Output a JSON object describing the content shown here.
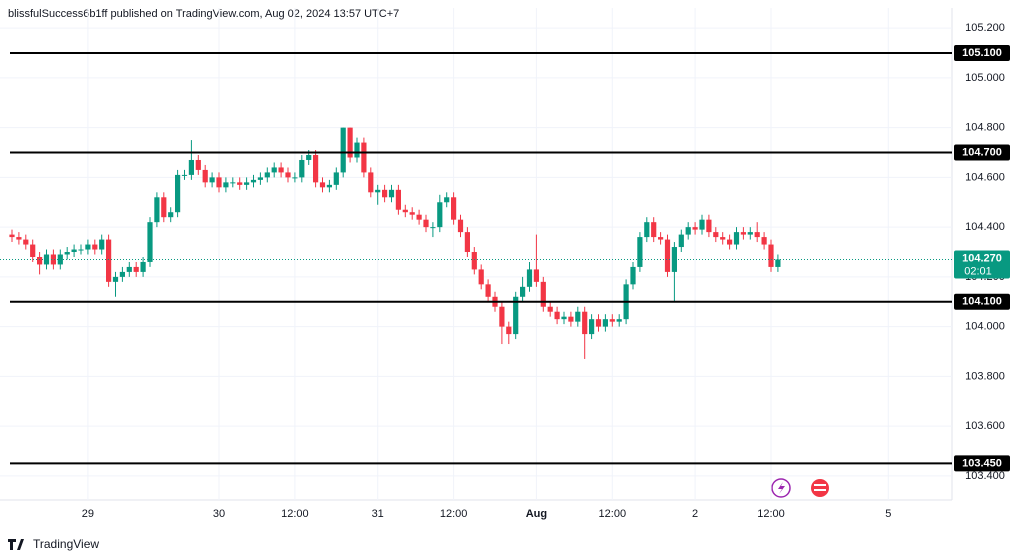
{
  "header": {
    "text": "blissfulSuccess6b1ff published on TradingView.com, Aug 02, 2024 13:57 UTC+7"
  },
  "footer": {
    "brand": "TradingView"
  },
  "chart_data": {
    "type": "candlestick",
    "up_color": "#089981",
    "down_color": "#f23645",
    "ylim": [
      103.303,
      105.281
    ],
    "yticks": [
      {
        "value": 103.4,
        "label": "103.400"
      },
      {
        "value": 103.6,
        "label": "103.600"
      },
      {
        "value": 103.8,
        "label": "103.800"
      },
      {
        "value": 104.0,
        "label": "104.000"
      },
      {
        "value": 104.2,
        "label": "104.200"
      },
      {
        "value": 104.4,
        "label": "104.400"
      },
      {
        "value": 104.6,
        "label": "104.600"
      },
      {
        "value": 104.8,
        "label": "104.800"
      },
      {
        "value": 105.0,
        "label": "105.000"
      },
      {
        "value": 105.2,
        "label": "105.200"
      }
    ],
    "grid": true,
    "levels": [
      {
        "value": 105.1,
        "label": "105.100"
      },
      {
        "value": 104.7,
        "label": "104.700"
      },
      {
        "value": 104.1,
        "label": "104.100"
      },
      {
        "value": 103.45,
        "label": "103.450"
      }
    ],
    "last_price": {
      "value": 104.27,
      "label": "104.270"
    },
    "countdown": "02:01",
    "categories": [
      null,
      null,
      null,
      null,
      null,
      null,
      null,
      null,
      null,
      null,
      null,
      "29",
      null,
      null,
      null,
      null,
      null,
      null,
      null,
      null,
      null,
      null,
      null,
      null,
      null,
      null,
      null,
      null,
      null,
      null,
      "30",
      null,
      null,
      null,
      null,
      null,
      null,
      null,
      null,
      null,
      null,
      "12:00",
      null,
      null,
      null,
      null,
      null,
      null,
      null,
      null,
      null,
      null,
      null,
      "31",
      null,
      null,
      null,
      null,
      null,
      null,
      null,
      null,
      null,
      null,
      "12:00",
      null,
      null,
      null,
      null,
      null,
      null,
      null,
      null,
      null,
      null,
      null,
      "Aug",
      null,
      null,
      null,
      null,
      null,
      null,
      null,
      null,
      null,
      null,
      "12:00",
      null,
      null,
      null,
      null,
      null,
      null,
      null,
      null,
      null,
      null,
      null,
      "2",
      null,
      null,
      null,
      null,
      null,
      null,
      null,
      null,
      null,
      null,
      "12:00",
      null,
      null,
      null,
      null,
      null,
      null,
      null,
      null,
      null,
      null,
      null,
      null,
      null,
      null,
      null,
      null,
      "5",
      null,
      null,
      null,
      null,
      null,
      null,
      null,
      null
    ],
    "open": [
      104.37,
      104.36,
      104.35,
      104.33,
      104.28,
      104.25,
      104.29,
      104.25,
      104.29,
      104.3,
      104.31,
      104.31,
      104.33,
      104.31,
      104.35,
      104.18,
      104.2,
      104.22,
      104.24,
      104.22,
      104.26,
      104.42,
      104.52,
      104.44,
      104.46,
      104.61,
      104.61,
      104.67,
      104.63,
      104.58,
      104.6,
      104.56,
      104.58,
      104.58,
      104.57,
      104.58,
      104.59,
      104.6,
      104.62,
      104.64,
      104.62,
      104.6,
      104.6,
      104.67,
      104.69,
      104.58,
      104.56,
      104.57,
      104.62,
      104.8,
      104.68,
      104.74,
      104.62,
      104.54,
      104.55,
      104.52,
      104.55,
      104.47,
      104.46,
      104.45,
      104.43,
      104.4,
      104.4,
      104.5,
      104.52,
      104.43,
      104.38,
      104.3,
      104.23,
      104.17,
      104.12,
      104.08,
      104.0,
      103.97,
      104.12,
      104.16,
      104.23,
      104.18,
      104.08,
      104.06,
      104.03,
      104.04,
      104.02,
      104.06,
      103.97,
      104.03,
      104.0,
      104.03,
      104.02,
      104.03,
      104.17,
      104.24,
      104.36,
      104.42,
      104.36,
      104.35,
      104.22,
      104.32,
      104.37,
      104.4,
      104.39,
      104.43,
      104.38,
      104.36,
      104.35,
      104.33,
      104.38,
      104.37,
      104.38,
      104.36,
      104.33,
      104.24,
      null,
      null,
      null,
      null,
      null,
      null,
      null,
      null,
      null,
      null,
      null,
      null,
      null,
      null,
      null,
      null,
      null,
      null,
      null,
      null,
      null,
      null,
      null,
      null
    ],
    "high": [
      104.39,
      104.38,
      104.37,
      104.35,
      104.3,
      104.31,
      104.31,
      104.31,
      104.32,
      104.33,
      104.33,
      104.35,
      104.35,
      104.37,
      104.37,
      104.22,
      104.24,
      104.26,
      104.26,
      104.28,
      104.44,
      104.54,
      104.54,
      104.48,
      104.63,
      104.63,
      104.75,
      104.69,
      104.65,
      104.62,
      104.62,
      104.6,
      104.6,
      104.6,
      104.6,
      104.61,
      104.62,
      104.64,
      104.66,
      104.66,
      104.64,
      104.62,
      104.69,
      104.71,
      104.71,
      104.6,
      104.59,
      104.64,
      104.8,
      104.8,
      104.76,
      104.76,
      104.64,
      104.57,
      104.57,
      104.57,
      104.57,
      104.49,
      104.48,
      104.47,
      104.45,
      104.42,
      104.53,
      104.54,
      104.54,
      104.45,
      104.4,
      104.32,
      104.25,
      104.19,
      104.14,
      104.1,
      104.02,
      104.14,
      104.2,
      104.26,
      104.37,
      104.2,
      104.1,
      104.08,
      104.06,
      104.06,
      104.08,
      104.08,
      104.05,
      104.05,
      104.05,
      104.05,
      104.05,
      104.19,
      104.26,
      104.38,
      104.44,
      104.44,
      104.38,
      104.37,
      104.34,
      104.39,
      104.42,
      104.42,
      104.45,
      104.45,
      104.4,
      104.38,
      104.37,
      104.4,
      104.4,
      104.4,
      104.42,
      104.38,
      104.35,
      104.29,
      null,
      null,
      null,
      null,
      null,
      null,
      null,
      null,
      null,
      null,
      null,
      null,
      null,
      null,
      null,
      null,
      null,
      null,
      null,
      null,
      null,
      null,
      null,
      null
    ],
    "low": [
      104.34,
      104.33,
      104.31,
      104.26,
      104.21,
      104.23,
      104.23,
      104.23,
      104.27,
      104.28,
      104.29,
      104.29,
      104.29,
      104.29,
      104.16,
      104.12,
      104.18,
      104.2,
      104.2,
      104.2,
      104.24,
      104.4,
      104.42,
      104.42,
      104.44,
      104.59,
      104.59,
      104.61,
      104.56,
      104.56,
      104.54,
      104.54,
      104.56,
      104.55,
      104.55,
      104.56,
      104.57,
      104.58,
      104.6,
      104.6,
      104.58,
      104.58,
      104.58,
      104.65,
      104.56,
      104.54,
      104.54,
      104.55,
      104.6,
      104.66,
      104.66,
      104.6,
      104.52,
      104.49,
      104.5,
      104.5,
      104.45,
      104.44,
      104.43,
      104.41,
      104.38,
      104.36,
      104.38,
      104.48,
      104.41,
      104.36,
      104.28,
      104.21,
      104.15,
      104.1,
      104.06,
      103.93,
      103.93,
      103.95,
      104.1,
      104.14,
      104.16,
      104.06,
      104.04,
      104.01,
      104.01,
      104.0,
      104.0,
      103.87,
      103.95,
      103.98,
      103.98,
      104.0,
      104.0,
      104.01,
      104.15,
      104.22,
      104.34,
      104.34,
      104.33,
      104.2,
      104.1,
      104.3,
      104.35,
      104.37,
      104.37,
      104.36,
      104.34,
      104.33,
      104.31,
      104.31,
      104.35,
      104.35,
      104.34,
      104.31,
      104.22,
      104.22,
      null,
      null,
      null,
      null,
      null,
      null,
      null,
      null,
      null,
      null,
      null,
      null,
      null,
      null,
      null,
      null,
      null,
      null,
      null,
      null,
      null,
      null,
      null,
      null
    ],
    "close": [
      104.36,
      104.35,
      104.33,
      104.28,
      104.25,
      104.29,
      104.25,
      104.29,
      104.3,
      104.31,
      104.31,
      104.33,
      104.31,
      104.35,
      104.18,
      104.2,
      104.22,
      104.24,
      104.22,
      104.26,
      104.42,
      104.52,
      104.44,
      104.46,
      104.61,
      104.61,
      104.67,
      104.63,
      104.58,
      104.6,
      104.56,
      104.58,
      104.58,
      104.57,
      104.58,
      104.59,
      104.6,
      104.62,
      104.64,
      104.62,
      104.6,
      104.6,
      104.67,
      104.69,
      104.58,
      104.56,
      104.57,
      104.62,
      104.8,
      104.68,
      104.74,
      104.62,
      104.54,
      104.55,
      104.52,
      104.55,
      104.47,
      104.46,
      104.45,
      104.43,
      104.4,
      104.4,
      104.5,
      104.52,
      104.43,
      104.38,
      104.3,
      104.23,
      104.17,
      104.12,
      104.08,
      104.0,
      103.97,
      104.12,
      104.16,
      104.23,
      104.18,
      104.08,
      104.06,
      104.03,
      104.04,
      104.02,
      104.06,
      103.97,
      104.03,
      104.0,
      104.03,
      104.02,
      104.03,
      104.17,
      104.24,
      104.36,
      104.42,
      104.36,
      104.35,
      104.22,
      104.32,
      104.37,
      104.4,
      104.39,
      104.43,
      104.38,
      104.36,
      104.35,
      104.33,
      104.38,
      104.37,
      104.38,
      104.36,
      104.33,
      104.24,
      104.27,
      null,
      null,
      null,
      null,
      null,
      null,
      null,
      null,
      null,
      null,
      null,
      null,
      null,
      null,
      null,
      null,
      null,
      null,
      null,
      null,
      null,
      null,
      null,
      null
    ]
  }
}
